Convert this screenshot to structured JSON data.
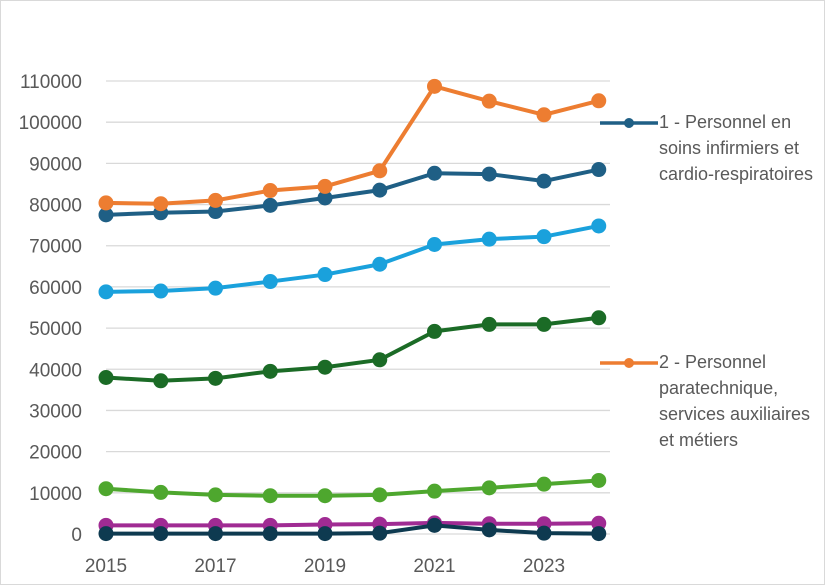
{
  "chart_data": {
    "type": "line",
    "title": "",
    "xlabel": "",
    "ylabel": "",
    "x": [
      2015,
      2016,
      2017,
      2018,
      2019,
      2020,
      2021,
      2022,
      2023,
      2024
    ],
    "x_tick_labels": [
      "2015",
      "2017",
      "2019",
      "2021",
      "2023"
    ],
    "y_tick_labels": [
      "0",
      "10000",
      "20000",
      "30000",
      "40000",
      "50000",
      "60000",
      "70000",
      "80000",
      "90000",
      "100000",
      "110000"
    ],
    "ylim": [
      0,
      110000
    ],
    "grid": "horizontal",
    "legend_placement": "right",
    "series": [
      {
        "name": "1 - Personnel en soins infirmiers et cardio-respiratoires",
        "color": "#1f5f85",
        "values": [
          77500,
          78000,
          78300,
          79800,
          81600,
          83500,
          87600,
          87400,
          85700,
          88500
        ]
      },
      {
        "name": "2 - Personnel paratechnique, services auxiliaires et métiers",
        "color": "#ed7d31",
        "values": [
          80400,
          80200,
          81000,
          83400,
          84400,
          88200,
          108700,
          105100,
          101800,
          105200
        ]
      },
      {
        "color": "#1aa1dc",
        "values": [
          58800,
          59000,
          59700,
          61300,
          63000,
          65500,
          70300,
          71600,
          72200,
          74800
        ]
      },
      {
        "color": "#1b6b26",
        "values": [
          38000,
          37200,
          37800,
          39500,
          40500,
          42300,
          49200,
          50900,
          50900,
          52500
        ]
      },
      {
        "color": "#4ea72e",
        "values": [
          11000,
          10100,
          9500,
          9300,
          9300,
          9500,
          10400,
          11200,
          12100,
          13000
        ]
      },
      {
        "color": "#a02b93",
        "values": [
          2100,
          2100,
          2100,
          2100,
          2300,
          2400,
          2700,
          2500,
          2500,
          2600
        ]
      },
      {
        "color": "#0e3a50",
        "values": [
          100,
          100,
          100,
          100,
          100,
          200,
          2100,
          1000,
          200,
          100
        ]
      }
    ]
  }
}
